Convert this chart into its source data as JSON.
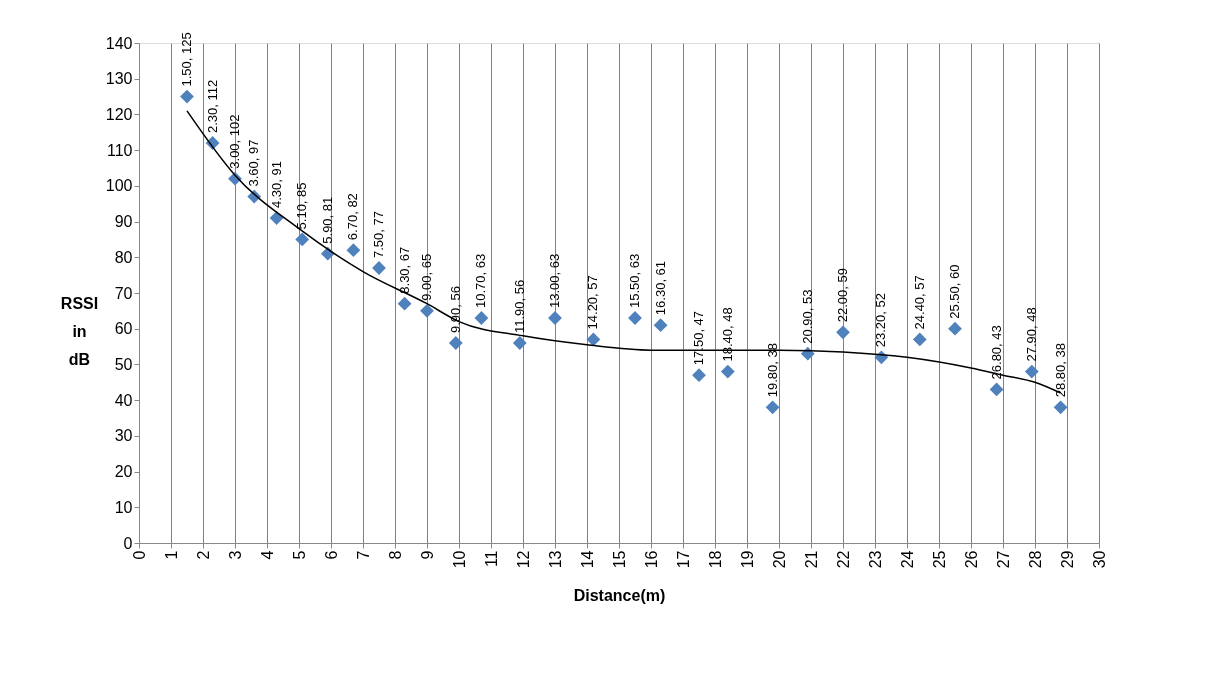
{
  "chart_data": {
    "type": "scatter",
    "xlabel": "Distance(m)",
    "ylabel": "RSSI in dB",
    "xlim": [
      0,
      30
    ],
    "xticks": [
      0,
      1,
      2,
      3,
      4,
      5,
      6,
      7,
      8,
      9,
      10,
      11,
      12,
      13,
      14,
      15,
      16,
      17,
      18,
      19,
      20,
      21,
      22,
      23,
      24,
      25,
      26,
      27,
      28,
      29,
      30
    ],
    "ylim": [
      0,
      140
    ],
    "yticks": [
      0,
      10,
      20,
      30,
      40,
      50,
      60,
      70,
      80,
      90,
      100,
      110,
      120,
      130,
      140
    ],
    "grid": "x",
    "marker": "diamond",
    "series": [
      {
        "color": "#4f81bd",
        "x": [
          1.5,
          2.3,
          3.0,
          3.6,
          4.3,
          5.1,
          5.9,
          6.7,
          7.5,
          8.3,
          9.0,
          9.9,
          10.7,
          11.9,
          13.0,
          14.2,
          15.5,
          16.3,
          17.5,
          18.4,
          19.8,
          20.9,
          22.0,
          23.2,
          24.4,
          25.5,
          26.8,
          27.9,
          28.8
        ],
        "values": [
          125,
          112,
          102,
          97,
          91,
          85,
          81,
          82,
          77,
          67,
          65,
          56,
          63,
          56,
          63,
          57,
          63,
          61,
          47,
          48,
          38,
          53,
          59,
          52,
          57,
          60,
          43,
          48,
          38
        ],
        "value_labels": [
          "1.50, 125",
          "2.30, 112",
          "3.00, 102",
          "3.60, 97",
          "4.30, 91",
          "5.10, 85",
          "5.90, 81",
          "6.70, 82",
          "7.50, 77",
          "8.30, 67",
          "9.00, 65",
          "9.90, 56",
          "10.70, 63",
          "11.90, 56",
          "13.00, 63",
          "14.20, 57",
          "15.50, 63",
          "16.30, 61",
          "17.50, 47",
          "18.40, 48",
          "19.80, 38",
          "20.90, 53",
          "22.00, 59",
          "23.20, 52",
          "24.40, 57",
          "25.50, 60",
          "26.80, 43",
          "27.90, 48",
          "28.80, 38"
        ]
      },
      {
        "type": "line",
        "color": "#000000",
        "marker": "none",
        "line_style": "solid",
        "x": [
          1.5,
          3,
          5,
          7,
          9,
          10,
          12,
          14,
          16,
          18,
          20,
          22,
          24,
          26,
          27,
          28,
          28.8
        ],
        "values": [
          121,
          103,
          88,
          76,
          67,
          62,
          58,
          55.5,
          54,
          54,
          54,
          53.5,
          52,
          49,
          47,
          45,
          42
        ]
      }
    ]
  }
}
